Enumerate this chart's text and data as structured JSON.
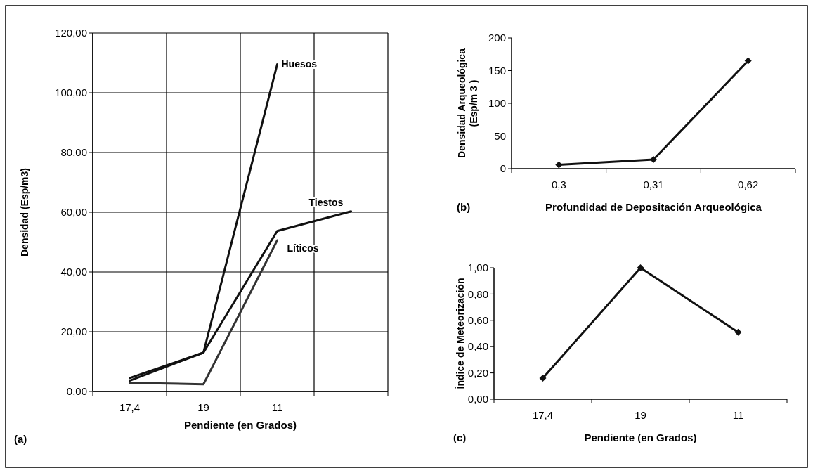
{
  "chart_data": [
    {
      "type": "line",
      "categories": [
        "17,4",
        "19",
        "11",
        null
      ],
      "xlabel": "Pendiente (en Grados)",
      "ylabel": "Densidad (Esp/m3)",
      "ylim": [
        0,
        120
      ],
      "yticks": [
        {
          "value": 0,
          "label": "0,00"
        },
        {
          "value": 20,
          "label": "20,00"
        },
        {
          "value": 40,
          "label": "40,00"
        },
        {
          "value": 60,
          "label": "60,00"
        },
        {
          "value": 80,
          "label": "80,00"
        },
        {
          "value": 100,
          "label": "100,00"
        },
        {
          "value": 120,
          "label": "120,00"
        }
      ],
      "grid": true,
      "marker": "none",
      "line_style": "solid",
      "annotations": [
        "(a)"
      ],
      "series": [
        {
          "name": "Huesos",
          "color": "#111111",
          "values": [
            4.5,
            13,
            109.5,
            null
          ]
        },
        {
          "name": "Tiestos",
          "color": "#111111",
          "values": [
            3.6,
            13,
            53.7,
            60.3
          ]
        },
        {
          "name": "Líticos",
          "color": "#333333",
          "values": [
            2.9,
            2.4,
            50.6,
            null
          ]
        }
      ]
    },
    {
      "type": "line",
      "categories": [
        "0,3",
        "0,31",
        "0,62"
      ],
      "xlabel": "Profundidad de Depositación Arqueológica",
      "ylabel": "Densidad Arqueológica\n(Esp/m 3 )",
      "ylim": [
        0,
        200
      ],
      "yticks": [
        0,
        50,
        100,
        150,
        200
      ],
      "grid": false,
      "marker": "diamond",
      "line_style": "solid",
      "annotations": [
        "(b)"
      ],
      "series": [
        {
          "color": "#111111",
          "values": [
            6,
            14,
            165
          ]
        }
      ]
    },
    {
      "type": "line",
      "categories": [
        "17,4",
        "19",
        "11"
      ],
      "xlabel": "Pendiente (en Grados)",
      "ylabel": "Índice de Meteorización",
      "ylim": [
        0,
        1
      ],
      "yticks": [
        {
          "value": 0,
          "label": "0,00"
        },
        {
          "value": 0.2,
          "label": "0,20"
        },
        {
          "value": 0.4,
          "label": "0,40"
        },
        {
          "value": 0.6,
          "label": "0,60"
        },
        {
          "value": 0.8,
          "label": "0,80"
        },
        {
          "value": 1,
          "label": "1,00"
        }
      ],
      "grid": false,
      "marker": "diamond",
      "line_style": "solid",
      "annotations": [
        "(c)"
      ],
      "series": [
        {
          "color": "#111111",
          "values": [
            0.16,
            1.0,
            0.51
          ]
        }
      ]
    }
  ]
}
